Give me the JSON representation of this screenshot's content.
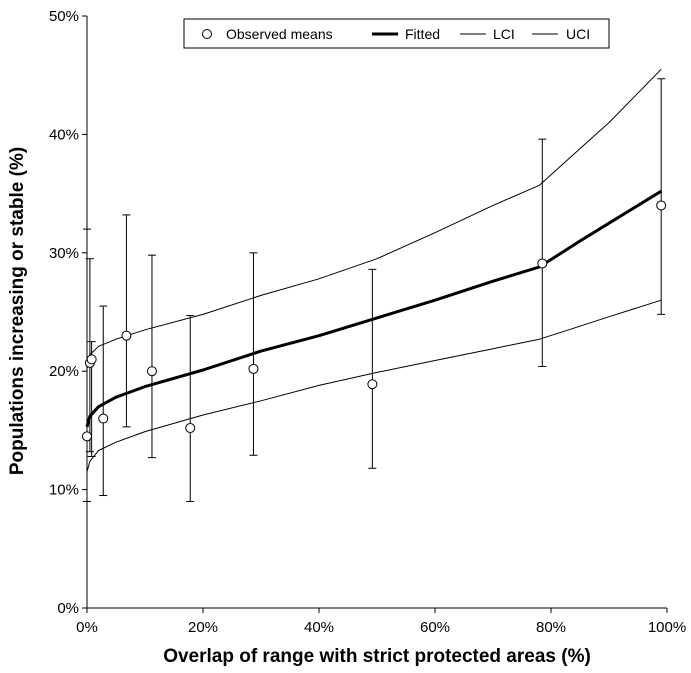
{
  "chart_data": {
    "type": "line",
    "xlabel": "Overlap of range with strict protected areas (%)",
    "ylabel": "Populations increasing or stable (%)",
    "xlim": [
      0,
      100
    ],
    "ylim": [
      0,
      50
    ],
    "x_ticks": [
      0,
      20,
      40,
      60,
      80,
      100
    ],
    "y_ticks": [
      0,
      10,
      20,
      30,
      40,
      50
    ],
    "x_tick_labels": [
      "0%",
      "20%",
      "40%",
      "60%",
      "80%",
      "100%"
    ],
    "y_tick_labels": [
      "0%",
      "10%",
      "20%",
      "30%",
      "40%",
      "50%"
    ],
    "legend": {
      "placement": "top-center",
      "entries": [
        "Observed means",
        "Fitted",
        "LCI",
        "UCI"
      ]
    },
    "observed_means": [
      {
        "x": 0.0,
        "y": 14.5,
        "lower": 9.0,
        "upper": 32.0
      },
      {
        "x": 0.5,
        "y": 20.7,
        "lower": 13.2,
        "upper": 29.5
      },
      {
        "x": 0.8,
        "y": 21.0,
        "lower": 12.8,
        "upper": 22.5
      },
      {
        "x": 2.8,
        "y": 16.0,
        "lower": 9.5,
        "upper": 25.5
      },
      {
        "x": 6.8,
        "y": 23.0,
        "lower": 15.3,
        "upper": 33.2
      },
      {
        "x": 11.2,
        "y": 20.0,
        "lower": 12.7,
        "upper": 29.8
      },
      {
        "x": 17.8,
        "y": 15.2,
        "lower": 9.0,
        "upper": 24.7
      },
      {
        "x": 28.7,
        "y": 20.2,
        "lower": 12.9,
        "upper": 30.0
      },
      {
        "x": 49.2,
        "y": 18.9,
        "lower": 11.8,
        "upper": 28.6
      },
      {
        "x": 78.5,
        "y": 29.1,
        "lower": 20.4,
        "upper": 39.6
      },
      {
        "x": 99.0,
        "y": 34.0,
        "lower": 24.8,
        "upper": 44.7
      }
    ],
    "series": [
      {
        "name": "Fitted",
        "x": [
          0,
          0.5,
          2,
          5,
          10,
          20,
          30,
          40,
          50,
          60,
          70,
          78,
          85,
          90,
          99
        ],
        "y": [
          15.3,
          16.2,
          17.0,
          17.8,
          18.7,
          20.1,
          21.7,
          23.0,
          24.5,
          26.0,
          27.6,
          28.8,
          31.0,
          32.5,
          35.2
        ]
      },
      {
        "name": "LCI",
        "x": [
          0,
          0.5,
          2,
          5,
          10,
          20,
          30,
          40,
          50,
          60,
          70,
          78,
          85,
          90,
          99
        ],
        "y": [
          11.5,
          12.4,
          13.3,
          14.0,
          14.9,
          16.3,
          17.5,
          18.8,
          19.9,
          20.9,
          21.9,
          22.7,
          23.8,
          24.6,
          26.0
        ]
      },
      {
        "name": "UCI",
        "x": [
          0,
          0.5,
          2,
          5,
          10,
          20,
          30,
          40,
          50,
          60,
          70,
          78,
          85,
          90,
          99
        ],
        "y": [
          20.2,
          21.4,
          22.1,
          22.7,
          23.5,
          24.8,
          26.4,
          27.8,
          29.5,
          31.7,
          34.0,
          35.7,
          38.8,
          41.0,
          45.5
        ]
      }
    ]
  }
}
